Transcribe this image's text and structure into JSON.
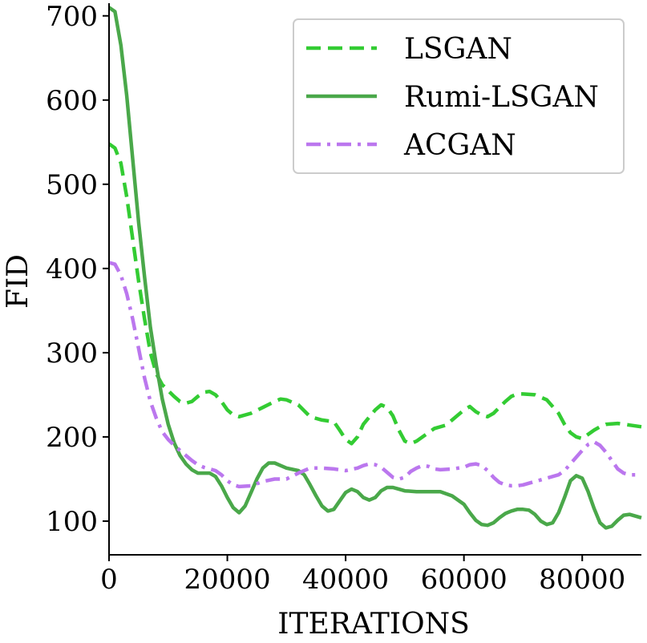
{
  "chart_data": {
    "type": "line",
    "title": "",
    "xlabel": "ITERATIONS",
    "ylabel": "FID",
    "xlim": [
      0,
      90000
    ],
    "ylim": [
      60,
      715
    ],
    "xticks": [
      0,
      20000,
      40000,
      60000,
      80000
    ],
    "xtick_labels": [
      "0",
      "20000",
      "40000",
      "60000",
      "80000"
    ],
    "yticks": [
      100,
      200,
      300,
      400,
      500,
      600,
      700
    ],
    "ytick_labels": [
      "100",
      "200",
      "300",
      "400",
      "500",
      "600",
      "700"
    ],
    "grid": false,
    "legend_position": "top-right",
    "series": [
      {
        "name": "LSGAN",
        "color": "#33cc33",
        "style": "dashed",
        "points": [
          [
            0,
            548
          ],
          [
            1000,
            543
          ],
          [
            2000,
            525
          ],
          [
            3000,
            485
          ],
          [
            4000,
            435
          ],
          [
            5000,
            385
          ],
          [
            6000,
            340
          ],
          [
            7000,
            300
          ],
          [
            8000,
            275
          ],
          [
            9000,
            262
          ],
          [
            10000,
            255
          ],
          [
            11000,
            248
          ],
          [
            12000,
            242
          ],
          [
            13000,
            240
          ],
          [
            14000,
            242
          ],
          [
            15000,
            248
          ],
          [
            16000,
            253
          ],
          [
            17000,
            254
          ],
          [
            18000,
            250
          ],
          [
            19000,
            242
          ],
          [
            20000,
            232
          ],
          [
            21000,
            226
          ],
          [
            22000,
            224
          ],
          [
            24000,
            228
          ],
          [
            26000,
            235
          ],
          [
            28000,
            242
          ],
          [
            29000,
            245
          ],
          [
            30000,
            244
          ],
          [
            32000,
            238
          ],
          [
            34000,
            224
          ],
          [
            36000,
            220
          ],
          [
            38000,
            218
          ],
          [
            39000,
            208
          ],
          [
            40000,
            197
          ],
          [
            41000,
            192
          ],
          [
            42000,
            200
          ],
          [
            43000,
            215
          ],
          [
            45000,
            232
          ],
          [
            46000,
            238
          ],
          [
            47000,
            235
          ],
          [
            48000,
            225
          ],
          [
            49000,
            208
          ],
          [
            50000,
            195
          ],
          [
            51000,
            192
          ],
          [
            52000,
            195
          ],
          [
            53000,
            200
          ],
          [
            54000,
            205
          ],
          [
            55000,
            210
          ],
          [
            57000,
            214
          ],
          [
            58000,
            220
          ],
          [
            60000,
            232
          ],
          [
            61000,
            236
          ],
          [
            62000,
            230
          ],
          [
            63000,
            226
          ],
          [
            64000,
            224
          ],
          [
            65000,
            228
          ],
          [
            66000,
            235
          ],
          [
            67000,
            242
          ],
          [
            68000,
            248
          ],
          [
            69000,
            251
          ],
          [
            70000,
            251
          ],
          [
            72000,
            250
          ],
          [
            74000,
            244
          ],
          [
            76000,
            228
          ],
          [
            77000,
            215
          ],
          [
            78000,
            205
          ],
          [
            79000,
            200
          ],
          [
            80000,
            198
          ],
          [
            82000,
            208
          ],
          [
            83000,
            212
          ],
          [
            84000,
            215
          ],
          [
            86000,
            216
          ],
          [
            88000,
            214
          ],
          [
            90000,
            212
          ]
        ]
      },
      {
        "name": "Rumi-LSGAN",
        "color": "#4aa84a",
        "style": "solid",
        "points": [
          [
            0,
            710
          ],
          [
            1000,
            705
          ],
          [
            2000,
            665
          ],
          [
            3000,
            605
          ],
          [
            4000,
            530
          ],
          [
            5000,
            455
          ],
          [
            6000,
            390
          ],
          [
            7000,
            330
          ],
          [
            8000,
            285
          ],
          [
            9000,
            245
          ],
          [
            10000,
            215
          ],
          [
            11000,
            193
          ],
          [
            12000,
            178
          ],
          [
            13000,
            168
          ],
          [
            14000,
            161
          ],
          [
            15000,
            157
          ],
          [
            16000,
            157
          ],
          [
            17000,
            157
          ],
          [
            18000,
            153
          ],
          [
            19000,
            142
          ],
          [
            20000,
            128
          ],
          [
            21000,
            116
          ],
          [
            22000,
            110
          ],
          [
            23000,
            118
          ],
          [
            24000,
            134
          ],
          [
            25000,
            150
          ],
          [
            26000,
            163
          ],
          [
            27000,
            169
          ],
          [
            28000,
            169
          ],
          [
            29000,
            166
          ],
          [
            30000,
            163
          ],
          [
            32000,
            160
          ],
          [
            33000,
            155
          ],
          [
            34000,
            143
          ],
          [
            35000,
            130
          ],
          [
            36000,
            118
          ],
          [
            37000,
            112
          ],
          [
            38000,
            114
          ],
          [
            39000,
            124
          ],
          [
            40000,
            134
          ],
          [
            41000,
            138
          ],
          [
            42000,
            135
          ],
          [
            43000,
            128
          ],
          [
            44000,
            125
          ],
          [
            45000,
            128
          ],
          [
            46000,
            136
          ],
          [
            47000,
            140
          ],
          [
            48000,
            140
          ],
          [
            49000,
            138
          ],
          [
            50000,
            136
          ],
          [
            52000,
            135
          ],
          [
            54000,
            135
          ],
          [
            56000,
            135
          ],
          [
            58000,
            130
          ],
          [
            60000,
            120
          ],
          [
            61000,
            110
          ],
          [
            62000,
            101
          ],
          [
            63000,
            96
          ],
          [
            64000,
            95
          ],
          [
            65000,
            98
          ],
          [
            66000,
            104
          ],
          [
            67000,
            109
          ],
          [
            68000,
            112
          ],
          [
            69000,
            114
          ],
          [
            70000,
            114
          ],
          [
            71000,
            113
          ],
          [
            72000,
            108
          ],
          [
            73000,
            100
          ],
          [
            74000,
            96
          ],
          [
            75000,
            98
          ],
          [
            76000,
            110
          ],
          [
            77000,
            128
          ],
          [
            78000,
            148
          ],
          [
            79000,
            154
          ],
          [
            80000,
            151
          ],
          [
            81000,
            135
          ],
          [
            82000,
            115
          ],
          [
            83000,
            98
          ],
          [
            84000,
            92
          ],
          [
            85000,
            94
          ],
          [
            86000,
            101
          ],
          [
            87000,
            107
          ],
          [
            88000,
            108
          ],
          [
            89000,
            106
          ],
          [
            90000,
            104
          ]
        ]
      },
      {
        "name": "ACGAN",
        "color": "#bb77ee",
        "style": "dashdot",
        "points": [
          [
            0,
            407
          ],
          [
            1000,
            405
          ],
          [
            2000,
            392
          ],
          [
            3000,
            370
          ],
          [
            4000,
            340
          ],
          [
            5000,
            305
          ],
          [
            6000,
            270
          ],
          [
            7000,
            242
          ],
          [
            8000,
            222
          ],
          [
            9000,
            206
          ],
          [
            10000,
            197
          ],
          [
            11000,
            190
          ],
          [
            12000,
            184
          ],
          [
            13000,
            178
          ],
          [
            14000,
            172
          ],
          [
            15000,
            167
          ],
          [
            16000,
            164
          ],
          [
            17000,
            162
          ],
          [
            18000,
            160
          ],
          [
            19000,
            155
          ],
          [
            20000,
            148
          ],
          [
            21000,
            143
          ],
          [
            22000,
            141
          ],
          [
            24000,
            142
          ],
          [
            26000,
            147
          ],
          [
            28000,
            150
          ],
          [
            30000,
            150
          ],
          [
            32000,
            157
          ],
          [
            34000,
            163
          ],
          [
            36000,
            163
          ],
          [
            38000,
            162
          ],
          [
            40000,
            160
          ],
          [
            42000,
            163
          ],
          [
            43000,
            166
          ],
          [
            44000,
            168
          ],
          [
            45000,
            167
          ],
          [
            46000,
            164
          ],
          [
            47000,
            158
          ],
          [
            48000,
            152
          ],
          [
            49000,
            150
          ],
          [
            50000,
            152
          ],
          [
            51000,
            159
          ],
          [
            52000,
            163
          ],
          [
            53000,
            166
          ],
          [
            54000,
            165
          ],
          [
            55000,
            162
          ],
          [
            56000,
            161
          ],
          [
            58000,
            162
          ],
          [
            60000,
            164
          ],
          [
            61000,
            167
          ],
          [
            62000,
            168
          ],
          [
            63000,
            166
          ],
          [
            64000,
            160
          ],
          [
            65000,
            152
          ],
          [
            66000,
            146
          ],
          [
            67000,
            143
          ],
          [
            68000,
            142
          ],
          [
            69000,
            142
          ],
          [
            70000,
            143
          ],
          [
            72000,
            147
          ],
          [
            74000,
            151
          ],
          [
            76000,
            155
          ],
          [
            77000,
            160
          ],
          [
            78000,
            168
          ],
          [
            79000,
            176
          ],
          [
            80000,
            184
          ],
          [
            81000,
            191
          ],
          [
            82000,
            194
          ],
          [
            83000,
            190
          ],
          [
            84000,
            182
          ],
          [
            85000,
            172
          ],
          [
            86000,
            162
          ],
          [
            87000,
            157
          ],
          [
            88000,
            155
          ],
          [
            90000,
            155
          ]
        ]
      }
    ]
  }
}
